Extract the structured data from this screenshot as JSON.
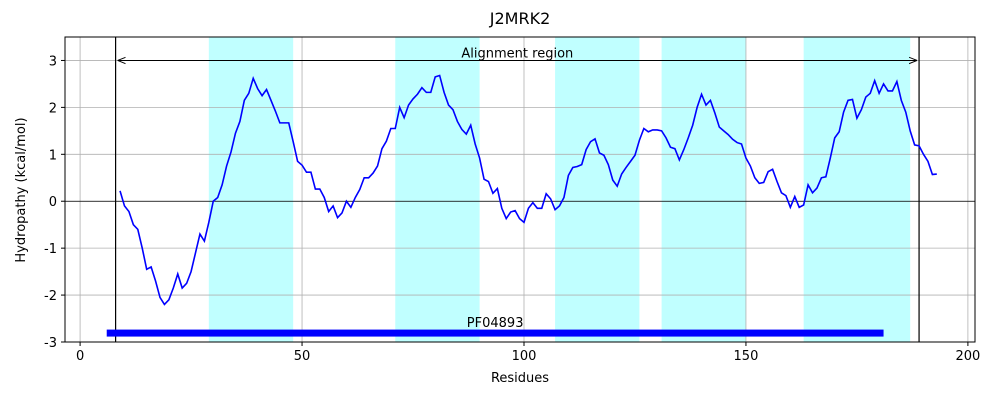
{
  "chart_data": {
    "type": "line",
    "title": "J2MRK2",
    "xlabel": "Residues",
    "ylabel": "Hydropathy (kcal/mol)",
    "xlim": [
      -3.4,
      201.6
    ],
    "ylim": [
      -3,
      3.5
    ],
    "xticks": [
      0,
      50,
      100,
      150,
      200
    ],
    "yticks": [
      -3,
      -2,
      -1,
      0,
      1,
      2,
      3
    ],
    "grid": true,
    "color": "#0000ff",
    "hline": 0,
    "x": [
      9,
      10,
      11,
      12,
      13,
      14,
      15,
      16,
      17,
      18,
      19,
      20,
      21,
      22,
      23,
      24,
      25,
      26,
      27,
      28,
      29,
      30,
      31,
      32,
      33,
      34,
      35,
      36,
      37,
      38,
      39,
      40,
      41,
      42,
      43,
      44,
      45,
      46,
      47,
      48,
      49,
      50,
      51,
      52,
      53,
      54,
      55,
      56,
      57,
      58,
      59,
      60,
      61,
      62,
      63,
      64,
      65,
      66,
      67,
      68,
      69,
      70,
      71,
      72,
      73,
      74,
      75,
      76,
      77,
      78,
      79,
      80,
      81,
      82,
      83,
      84,
      85,
      86,
      87,
      88,
      89,
      90,
      91,
      92,
      93,
      94,
      95,
      96,
      97,
      98,
      99,
      100,
      101,
      102,
      103,
      104,
      105,
      106,
      107,
      108,
      109,
      110,
      111,
      112,
      113,
      114,
      115,
      116,
      117,
      118,
      119,
      120,
      121,
      122,
      123,
      124,
      125,
      126,
      127,
      128,
      129,
      130,
      131,
      132,
      133,
      134,
      135,
      136,
      137,
      138,
      139,
      140,
      141,
      142,
      143,
      144,
      145,
      146,
      147,
      148,
      149,
      150,
      151,
      152,
      153,
      154,
      155,
      156,
      157,
      158,
      159,
      160,
      161,
      162,
      163,
      164,
      165,
      166,
      167,
      168,
      169,
      170,
      171,
      172,
      173,
      174,
      175,
      176,
      177,
      178,
      179,
      180,
      181,
      182,
      183,
      184,
      185,
      186,
      187,
      188,
      189,
      190,
      191,
      192,
      193
    ],
    "values": [
      0.22,
      -0.1,
      -0.22,
      -0.5,
      -0.6,
      -1.0,
      -1.45,
      -1.4,
      -1.7,
      -2.05,
      -2.2,
      -2.1,
      -1.85,
      -1.55,
      -1.85,
      -1.75,
      -1.5,
      -1.1,
      -0.7,
      -0.85,
      -0.45,
      0,
      0.08,
      0.35,
      0.75,
      1.05,
      1.45,
      1.7,
      2.15,
      2.3,
      2.62,
      2.4,
      2.25,
      2.38,
      2.15,
      1.92,
      1.67,
      1.67,
      1.67,
      1.27,
      0.85,
      0.77,
      0.62,
      0.62,
      0.26,
      0.26,
      0.08,
      -0.22,
      -0.1,
      -0.35,
      -0.25,
      0,
      -0.13,
      0.08,
      0.25,
      0.5,
      0.5,
      0.6,
      0.75,
      1.12,
      1.28,
      1.55,
      1.55,
      2.0,
      1.78,
      2.05,
      2.18,
      2.28,
      2.42,
      2.32,
      2.32,
      2.65,
      2.68,
      2.32,
      2.05,
      1.95,
      1.7,
      1.53,
      1.43,
      1.62,
      1.22,
      0.92,
      0.47,
      0.42,
      0.17,
      0.27,
      -0.15,
      -0.37,
      -0.23,
      -0.2,
      -0.37,
      -0.45,
      -0.15,
      -0.03,
      -0.15,
      -0.15,
      0.16,
      0.05,
      -0.18,
      -0.1,
      0.08,
      0.55,
      0.72,
      0.74,
      0.78,
      1.1,
      1.27,
      1.33,
      1.03,
      0.98,
      0.78,
      0.45,
      0.32,
      0.58,
      0.72,
      0.85,
      0.98,
      1.3,
      1.55,
      1.48,
      1.52,
      1.52,
      1.5,
      1.35,
      1.15,
      1.12,
      0.88,
      1.1,
      1.35,
      1.62,
      2.0,
      2.28,
      2.05,
      2.15,
      1.88,
      1.58,
      1.5,
      1.42,
      1.32,
      1.25,
      1.22,
      0.92,
      0.75,
      0.5,
      0.38,
      0.4,
      0.63,
      0.68,
      0.42,
      0.18,
      0.12,
      -0.13,
      0.1,
      -0.13,
      -0.08,
      0.35,
      0.18,
      0.28,
      0.5,
      0.52,
      0.92,
      1.35,
      1.48,
      1.9,
      2.15,
      2.17,
      1.77,
      1.95,
      2.22,
      2.3,
      2.57,
      2.3,
      2.5,
      2.35,
      2.35,
      2.55,
      2.15,
      1.9,
      1.5,
      1.2,
      1.18,
      1.0,
      0.85,
      0.57,
      0.58
    ],
    "shaded_color": "#c0ffff",
    "shaded_regions": [
      [
        29,
        48
      ],
      [
        71,
        90
      ],
      [
        107,
        126
      ],
      [
        131,
        150
      ],
      [
        163,
        187
      ]
    ],
    "vlines": [
      8,
      189
    ],
    "annotation": {
      "text": "Alignment region",
      "x": [
        8,
        189
      ],
      "y": 3
    },
    "domain": {
      "label": "PF04893",
      "start": 6,
      "end": 181,
      "y": -2.81,
      "color": "#0000ff"
    }
  }
}
